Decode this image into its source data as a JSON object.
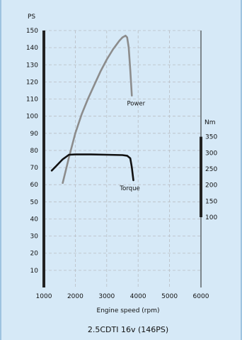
{
  "chart_data": {
    "type": "line",
    "caption": "2.5CDTI 16v (146PS)",
    "xlabel": "Engine speed (rpm)",
    "ylabel_left": "PS",
    "ylabel_right": "Nm",
    "xlim": [
      1000,
      6000
    ],
    "ylim_left": [
      0,
      150
    ],
    "ylim_right_ticks": [
      100,
      150,
      200,
      250,
      300,
      350
    ],
    "x_ticks": [
      1000,
      2000,
      3000,
      4000,
      5000,
      6000
    ],
    "y_ticks_left": [
      10,
      20,
      30,
      40,
      50,
      60,
      70,
      80,
      90,
      100,
      110,
      120,
      130,
      140,
      150
    ],
    "grid": true,
    "series": [
      {
        "name": "Power",
        "axis": "left",
        "color": "#8c8c8c",
        "x": [
          1600,
          1800,
          2000,
          2200,
          2400,
          2600,
          2800,
          3000,
          3200,
          3400,
          3500,
          3600,
          3650,
          3700,
          3750,
          3800
        ],
        "y": [
          61,
          76,
          90,
          101,
          110,
          118,
          126,
          133,
          139,
          144,
          146,
          147,
          146,
          140,
          127,
          112
        ]
      },
      {
        "name": "Torque",
        "axis": "right",
        "color": "#111111",
        "x": [
          1250,
          1400,
          1600,
          1800,
          2000,
          2500,
          3000,
          3500,
          3650,
          3750,
          3800,
          3850
        ],
        "y": [
          245,
          260,
          280,
          294,
          295,
          295,
          294,
          293,
          291,
          283,
          255,
          215
        ]
      }
    ]
  }
}
